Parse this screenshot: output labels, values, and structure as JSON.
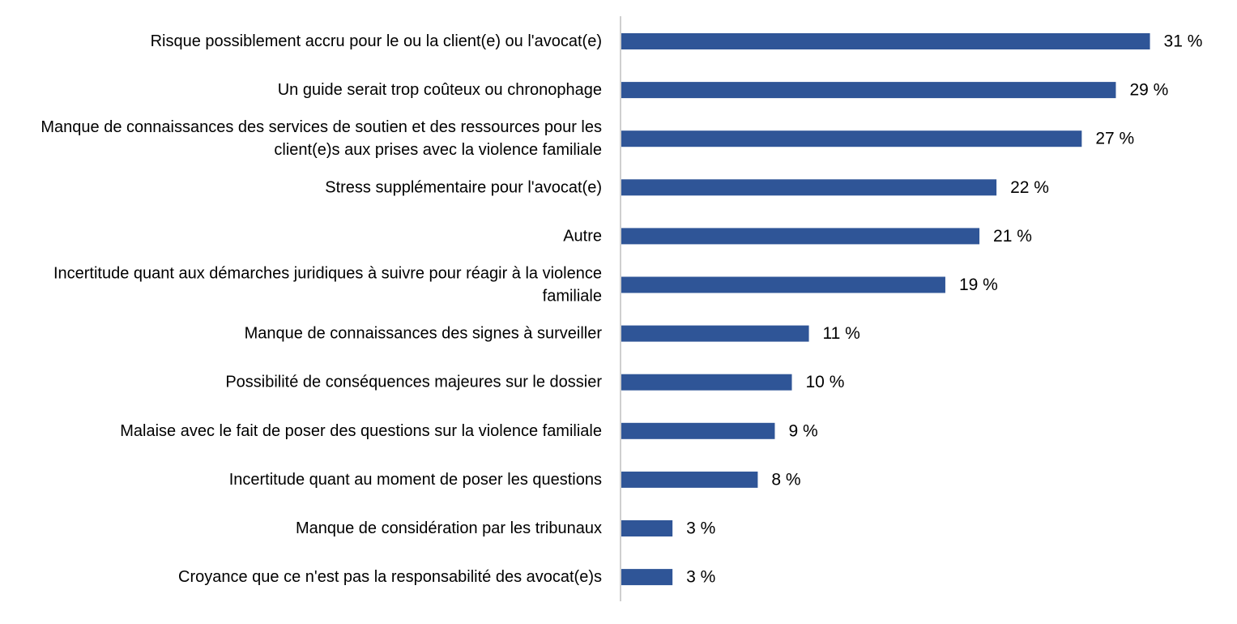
{
  "chart_data": {
    "type": "bar",
    "orientation": "horizontal",
    "title": "",
    "xlabel": "",
    "ylabel": "",
    "xlim": [
      0,
      31
    ],
    "grid": false,
    "legend": "none",
    "bar_color": "#2F5597",
    "axis_color": "#BFBFBF",
    "categories": [
      "Risque possiblement accru pour le ou la client(e) ou l'avocat(e)",
      "Un guide serait trop coûteux ou chronophage",
      "Manque de connaissances des services de soutien et des ressources pour les client(e)s aux prises avec la violence familiale",
      "Stress supplémentaire pour l'avocat(e)",
      "Autre",
      "Incertitude quant aux démarches juridiques à suivre pour réagir à la violence familiale",
      "Manque de connaissances des signes à surveiller",
      "Possibilité de conséquences majeures sur le dossier",
      "Malaise avec le fait de poser des questions sur la violence familiale",
      "Incertitude quant au moment de poser les questions",
      "Manque de considération par les tribunaux",
      "Croyance que ce n'est pas la responsabilité des avocat(e)s"
    ],
    "values": [
      31,
      29,
      27,
      22,
      21,
      19,
      11,
      10,
      9,
      8,
      3,
      3
    ],
    "value_labels": [
      "31 %",
      "29 %",
      "27 %",
      "22 %",
      "21 %",
      "19 %",
      "11 %",
      "10 %",
      "9 %",
      "8 %",
      "3 %",
      "3 %"
    ]
  }
}
